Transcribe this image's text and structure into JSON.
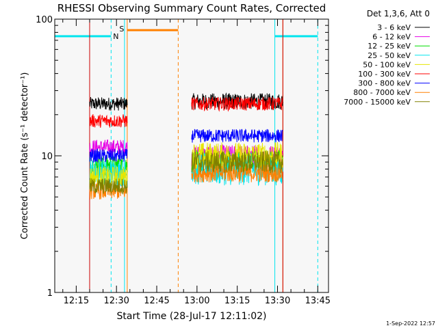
{
  "chart_data": {
    "type": "line",
    "title": "RHESSI Observing Summary Count Rates, Corrected",
    "xlabel": "Start Time (28-Jul-17 12:11:02)",
    "ylabel": "Corrected Count Rate (s⁻¹ detector⁻¹)",
    "yscale": "log",
    "ylim": [
      1,
      100
    ],
    "y_tick_labels": [
      "1",
      "10",
      "100"
    ],
    "xlim": [
      "12:07",
      "13:49"
    ],
    "x_tick_labels": [
      "12:15",
      "12:30",
      "12:45",
      "13:00",
      "13:15",
      "13:30",
      "13:45"
    ],
    "legend_title": "Det 1,3,6, Att 0",
    "legend_position": "right",
    "timestamp": "1-Sep-2022 12:57",
    "series": [
      {
        "name": "3 - 6 keV",
        "color": "#000000",
        "segments": [
          {
            "x": [
              "12:20",
              "12:34"
            ],
            "level": 24,
            "noise": 0.05
          },
          {
            "x": [
              "12:58",
              "13:32"
            ],
            "level": 25,
            "noise": 0.06
          }
        ]
      },
      {
        "name": "6 - 12 keV",
        "color": "#e600e6",
        "segments": [
          {
            "x": [
              "12:20",
              "12:34"
            ],
            "level": 11.5,
            "noise": 0.06
          },
          {
            "x": [
              "12:58",
              "13:32"
            ],
            "level": 10,
            "noise": 0.08
          }
        ]
      },
      {
        "name": "12 - 25 keV",
        "color": "#00dd00",
        "segments": [
          {
            "x": [
              "12:20",
              "12:34"
            ],
            "level": 8.5,
            "noise": 0.08
          },
          {
            "x": [
              "12:58",
              "13:32"
            ],
            "level": 9,
            "noise": 0.09
          }
        ]
      },
      {
        "name": "25 - 50 keV",
        "color": "#00e5ee",
        "segments": [
          {
            "x": [
              "12:20",
              "12:34"
            ],
            "level": 7.5,
            "noise": 0.1
          },
          {
            "x": [
              "12:58",
              "13:32"
            ],
            "level": 8,
            "noise": 0.12
          }
        ]
      },
      {
        "name": "50 - 100 keV",
        "color": "#e6e600",
        "segments": [
          {
            "x": [
              "12:20",
              "12:34"
            ],
            "level": 7,
            "noise": 0.08
          },
          {
            "x": [
              "12:58",
              "13:32"
            ],
            "level": 10,
            "noise": 0.1
          }
        ]
      },
      {
        "name": "100 - 300 keV",
        "color": "#ff0000",
        "segments": [
          {
            "x": [
              "12:20",
              "12:34"
            ],
            "level": 18,
            "noise": 0.05
          },
          {
            "x": [
              "12:58",
              "13:32"
            ],
            "level": 24,
            "noise": 0.05
          }
        ]
      },
      {
        "name": "300 - 800 keV",
        "color": "#0000ff",
        "segments": [
          {
            "x": [
              "12:20",
              "12:34"
            ],
            "level": 10,
            "noise": 0.05
          },
          {
            "x": [
              "12:58",
              "13:32"
            ],
            "level": 14,
            "noise": 0.05
          }
        ]
      },
      {
        "name": "800 - 7000 keV",
        "color": "#ff8000",
        "segments": [
          {
            "x": [
              "12:20",
              "12:34"
            ],
            "level": 5.5,
            "noise": 0.06
          },
          {
            "x": [
              "12:58",
              "13:32"
            ],
            "level": 7.5,
            "noise": 0.07
          }
        ]
      },
      {
        "name": "7000 - 15000 keV",
        "color": "#808000",
        "segments": [
          {
            "x": [
              "12:20",
              "12:34"
            ],
            "level": 6,
            "noise": 0.06
          },
          {
            "x": [
              "12:58",
              "13:32"
            ],
            "level": 9,
            "noise": 0.08
          }
        ]
      }
    ],
    "flags": {
      "night_label": "N",
      "saa_label": "S",
      "night_color": "#00e5ee",
      "saa_color": "#ff8000",
      "night_bars": [
        {
          "x": [
            "12:07",
            "12:28"
          ],
          "y": 75
        },
        {
          "x": [
            "13:29",
            "13:45"
          ],
          "y": 75
        }
      ],
      "saa_bars": [
        {
          "x": [
            "12:34",
            "12:53"
          ],
          "y": 83
        }
      ],
      "night_lines_solid": [
        "12:07",
        "12:33",
        "13:29"
      ],
      "night_lines_dashed": [
        "12:28",
        "13:45"
      ],
      "saa_lines_solid": [
        "12:34",
        "13:32"
      ],
      "saa_lines_dashed": [
        "12:53"
      ],
      "red_edge_lines": [
        "12:20",
        "13:32"
      ]
    }
  }
}
